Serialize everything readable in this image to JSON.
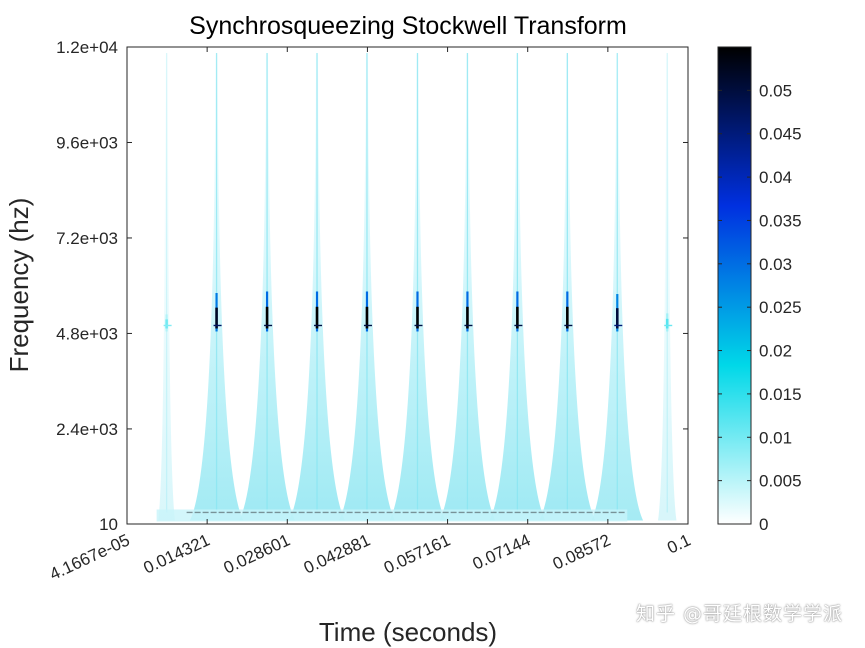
{
  "chart_data": {
    "type": "heatmap",
    "title": "Synchrosqueezing Stockwell Transform",
    "xlabel": "Time (seconds)",
    "ylabel": "Frequency (hz)",
    "xlim": [
      4.1667e-05,
      0.1
    ],
    "ylim": [
      10,
      12000
    ],
    "x_ticks": [
      4.1667e-05,
      0.014321,
      0.028601,
      0.042881,
      0.057161,
      0.07144,
      0.08572,
      0.1
    ],
    "x_tick_labels": [
      "4.1667e-05",
      "0.014321",
      "0.028601",
      "0.042881",
      "0.057161",
      "0.07144",
      "0.08572",
      "0.1"
    ],
    "y_ticks": [
      10,
      2400,
      4800,
      7200,
      9600,
      12000
    ],
    "y_tick_labels": [
      "10",
      "2.4e+03",
      "4.8e+03",
      "7.2e+03",
      "9.6e+03",
      "1.2e+04"
    ],
    "colorbar": {
      "ticks": [
        0,
        0.005,
        0.01,
        0.015,
        0.02,
        0.025,
        0.03,
        0.035,
        0.04,
        0.045,
        0.05
      ],
      "tick_labels": [
        "0",
        "0.005",
        "0.01",
        "0.015",
        "0.02",
        "0.025",
        "0.03",
        "0.035",
        "0.04",
        "0.045",
        "0.05"
      ],
      "range": [
        0,
        0.055
      ],
      "colormap_stops": [
        "#ffffff",
        "#00d8e8",
        "#0030e0",
        "#000000"
      ]
    },
    "carrier_frequency": 5000,
    "baseline_frequency": 300,
    "pulses": [
      {
        "t": 0.0071,
        "peak": 0.01
      },
      {
        "t": 0.016,
        "peak": 0.052
      },
      {
        "t": 0.025,
        "peak": 0.055
      },
      {
        "t": 0.0339,
        "peak": 0.055
      },
      {
        "t": 0.0428,
        "peak": 0.055
      },
      {
        "t": 0.0518,
        "peak": 0.055
      },
      {
        "t": 0.0607,
        "peak": 0.055
      },
      {
        "t": 0.0696,
        "peak": 0.055
      },
      {
        "t": 0.0785,
        "peak": 0.055
      },
      {
        "t": 0.0874,
        "peak": 0.05
      },
      {
        "t": 0.0963,
        "peak": 0.012
      }
    ]
  },
  "watermark": "知乎 @哥廷根数学学派"
}
